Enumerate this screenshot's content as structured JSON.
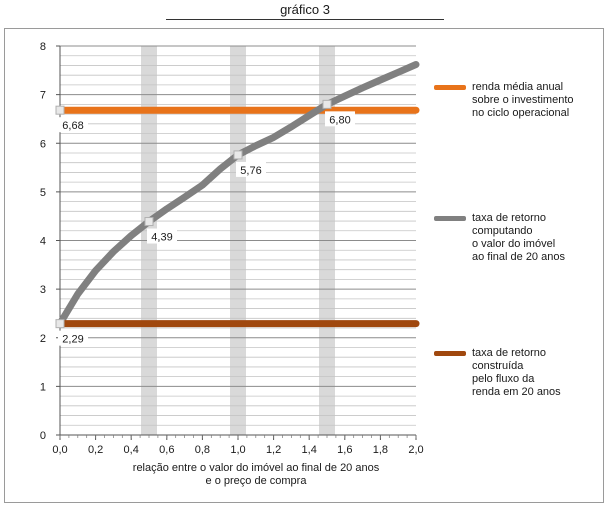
{
  "title": "gráfico 3",
  "chart_data": {
    "type": "line",
    "xlabel": "relação entre o valor do imóvel ao final de 20 anos\ne o preço de compra",
    "ylabel": "",
    "xlim": [
      0,
      2.0
    ],
    "ylim": [
      0,
      8
    ],
    "x_ticks": [
      "0,0",
      "0,2",
      "0,4",
      "0,6",
      "0,8",
      "1,0",
      "1,2",
      "1,4",
      "1,6",
      "1,8",
      "2,0"
    ],
    "y_ticks": [
      "0",
      "1",
      "2",
      "3",
      "4",
      "5",
      "6",
      "7",
      "8"
    ],
    "grid": "horizontal",
    "legend": "right",
    "highlight_bands": [
      0.5,
      1.0,
      1.5
    ],
    "series": [
      {
        "name": "renda média anual\nsobre o investimento\nno ciclo operacional",
        "color": "#e8731a",
        "x": [
          0.0,
          2.0
        ],
        "y": [
          6.68,
          6.68
        ],
        "labels": [
          {
            "x": 0.0,
            "y": 6.68,
            "text": "6,68"
          }
        ]
      },
      {
        "name": "taxa de retorno\ncomputando\no valor do imóvel\nao final de 20 anos",
        "color": "#808080",
        "x": [
          0.0,
          0.1,
          0.2,
          0.3,
          0.4,
          0.5,
          0.6,
          0.7,
          0.8,
          0.9,
          1.0,
          1.1,
          1.2,
          1.3,
          1.4,
          1.5,
          1.6,
          1.7,
          1.8,
          1.9,
          2.0
        ],
        "y": [
          2.29,
          2.9,
          3.38,
          3.77,
          4.1,
          4.39,
          4.65,
          4.89,
          5.14,
          5.47,
          5.76,
          5.95,
          6.12,
          6.34,
          6.57,
          6.8,
          6.97,
          7.14,
          7.3,
          7.46,
          7.62
        ],
        "labels": [
          {
            "x": 0.5,
            "y": 4.39,
            "text": "4,39"
          },
          {
            "x": 1.0,
            "y": 5.76,
            "text": "5,76"
          },
          {
            "x": 1.5,
            "y": 6.8,
            "text": "6,80"
          }
        ]
      },
      {
        "name": "taxa de retorno\nconstruída\npelo fluxo da\nrenda em 20 anos",
        "color": "#a0480e",
        "x": [
          0.0,
          2.0
        ],
        "y": [
          2.29,
          2.29
        ],
        "labels": [
          {
            "x": 0.0,
            "y": 2.29,
            "text": "2,29"
          }
        ]
      }
    ]
  }
}
